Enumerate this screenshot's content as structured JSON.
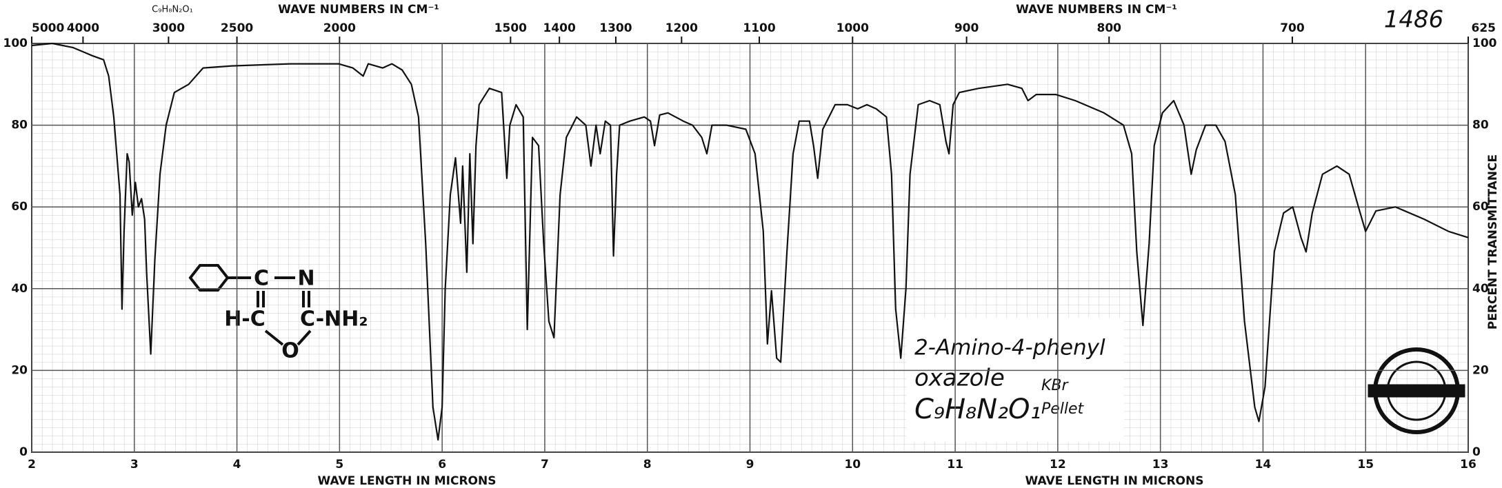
{
  "chart_data": {
    "type": "line",
    "title_top_left": "WAVE NUMBERS IN CM⁻¹",
    "title_top_right": "WAVE NUMBERS IN CM⁻¹",
    "xlabel_left": "WAVE LENGTH IN MICRONS",
    "xlabel_right": "WAVE LENGTH IN MICRONS",
    "ylabel_right": "PERCENT TRANSMITTANCE",
    "formula_top": "C₉H₈N₂O₁",
    "spectrum_number": "1486",
    "annotations": [
      "2-Amino-4-phenyl",
      "oxazole",
      "C₉H₈N₂O₁",
      "KBr",
      "Pellet"
    ],
    "structure_labels": [
      "C",
      "N",
      "H-C",
      "C-NH₂",
      "O"
    ],
    "color": "#111111",
    "grid": true,
    "xlim": [
      2,
      16
    ],
    "xticks": [
      2,
      3,
      4,
      5,
      6,
      7,
      8,
      9,
      10,
      11,
      12,
      13,
      14,
      15,
      16
    ],
    "x2ticks": [
      5000,
      4000,
      3000,
      2500,
      2000,
      1500,
      1400,
      1300,
      1200,
      1100,
      1000,
      900,
      800,
      700,
      625
    ],
    "ylim": [
      0,
      100
    ],
    "yticks": [
      0,
      20,
      40,
      60,
      80,
      100
    ],
    "x": [
      2.0,
      2.2,
      2.4,
      2.59,
      2.7,
      2.75,
      2.8,
      2.86,
      2.88,
      2.9,
      2.93,
      2.95,
      2.98,
      3.01,
      3.04,
      3.07,
      3.1,
      3.12,
      3.16,
      3.2,
      3.25,
      3.31,
      3.39,
      3.53,
      3.67,
      3.95,
      4.52,
      4.99,
      5.13,
      5.23,
      5.28,
      5.42,
      5.51,
      5.61,
      5.7,
      5.77,
      5.84,
      5.91,
      5.96,
      6.0,
      6.03,
      6.08,
      6.13,
      6.18,
      6.2,
      6.24,
      6.27,
      6.3,
      6.33,
      6.36,
      6.41,
      6.46,
      6.52,
      6.58,
      6.63,
      6.66,
      6.72,
      6.79,
      6.83,
      6.88,
      6.94,
      6.99,
      7.04,
      7.09,
      7.15,
      7.21,
      7.31,
      7.4,
      7.45,
      7.5,
      7.54,
      7.59,
      7.64,
      7.67,
      7.7,
      7.73,
      7.83,
      7.97,
      8.03,
      8.07,
      8.12,
      8.2,
      8.35,
      8.44,
      8.53,
      8.58,
      8.63,
      8.77,
      8.96,
      9.05,
      9.13,
      9.17,
      9.21,
      9.26,
      9.3,
      9.36,
      9.42,
      9.48,
      9.58,
      9.62,
      9.66,
      9.71,
      9.83,
      9.95,
      10.05,
      10.14,
      10.23,
      10.33,
      10.38,
      10.42,
      10.47,
      10.52,
      10.56,
      10.64,
      10.75,
      10.85,
      10.91,
      10.94,
      10.98,
      11.04,
      11.23,
      11.51,
      11.65,
      11.71,
      11.79,
      11.98,
      12.17,
      12.45,
      12.64,
      12.72,
      12.77,
      12.83,
      12.89,
      12.94,
      13.02,
      13.13,
      13.23,
      13.3,
      13.35,
      13.44,
      13.54,
      13.63,
      13.73,
      13.82,
      13.92,
      13.96,
      14.02,
      14.11,
      14.2,
      14.29,
      14.37,
      14.42,
      14.48,
      14.58,
      14.72,
      14.84,
      14.93,
      15.0,
      15.1,
      15.29,
      15.57,
      15.81,
      16.0
    ],
    "values": [
      99.5,
      100,
      99,
      97,
      96,
      92,
      82,
      63,
      35,
      54,
      73,
      71,
      58,
      66,
      60,
      62,
      57,
      44,
      24,
      47,
      68,
      80,
      88,
      90,
      94,
      94.5,
      95,
      95,
      94,
      92,
      95,
      94,
      95,
      93.5,
      90,
      82,
      51,
      11,
      3,
      11,
      40,
      63,
      72,
      56,
      70,
      44,
      73,
      51,
      75,
      85,
      87,
      89,
      88.5,
      88,
      67,
      80,
      85,
      82,
      30,
      77,
      75,
      51,
      32,
      28,
      63,
      77,
      82,
      80,
      70,
      80,
      73,
      81,
      80,
      48,
      68,
      80,
      81,
      82,
      81,
      75,
      82.5,
      83,
      81,
      80,
      77,
      73,
      80,
      80,
      79,
      73,
      54,
      26.5,
      39.5,
      23,
      22,
      49,
      73,
      81,
      81,
      75,
      67,
      79,
      85,
      85,
      84,
      85,
      84,
      82,
      68,
      35,
      23,
      40,
      68,
      85,
      86,
      85,
      76,
      73,
      85,
      88,
      89,
      90,
      89,
      86,
      87.5,
      87.5,
      86,
      83,
      80,
      73,
      49,
      31,
      51,
      75,
      83,
      86,
      80,
      68,
      74,
      80,
      80,
      76,
      63,
      32,
      11,
      7.5,
      16,
      49,
      58.5,
      60,
      52.5,
      49,
      58.5,
      68,
      70,
      68,
      60,
      54,
      59,
      60,
      57,
      54,
      52.5
    ]
  }
}
